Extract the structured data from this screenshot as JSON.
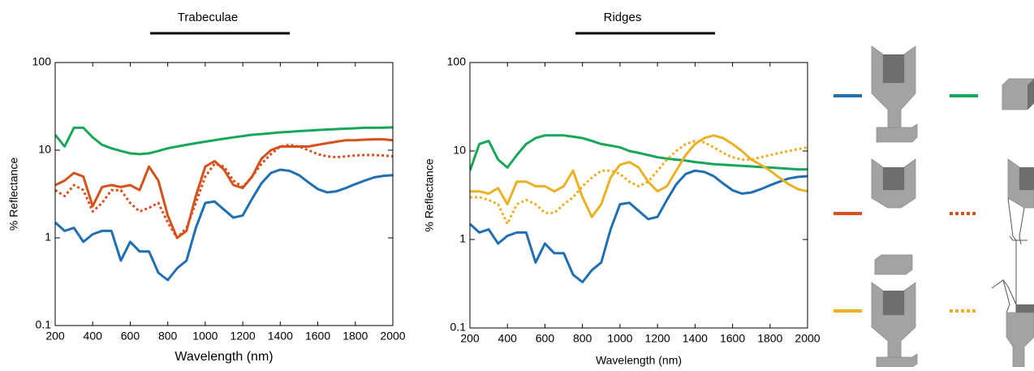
{
  "chart_data": [
    {
      "type": "line",
      "title": "Trabeculae",
      "xlabel": "Wavelength (nm)",
      "ylabel": "% Reflectance",
      "log_y": true,
      "x": [
        200,
        250,
        300,
        350,
        400,
        450,
        500,
        550,
        600,
        650,
        700,
        750,
        800,
        850,
        900,
        950,
        1000,
        1050,
        1100,
        1150,
        1200,
        1250,
        1300,
        1350,
        1400,
        1450,
        1500,
        1550,
        1600,
        1650,
        1700,
        1750,
        1800,
        1850,
        1900,
        1950,
        2000
      ],
      "xlim": [
        200,
        2000
      ],
      "xticks": [
        200,
        400,
        600,
        800,
        1000,
        1200,
        1400,
        1600,
        1800,
        2000
      ],
      "ylim": [
        0.1,
        100
      ],
      "yticks": [
        0.1,
        1,
        10,
        100
      ],
      "series": [
        {
          "color": "#17a75a",
          "dashed": false,
          "values": [
            15,
            11,
            18,
            18,
            14,
            11.5,
            10.5,
            9.8,
            9.2,
            9,
            9.2,
            9.8,
            10.5,
            11,
            11.5,
            12,
            12.5,
            13,
            13.5,
            14,
            14.5,
            15,
            15.3,
            15.6,
            16,
            16.2,
            16.5,
            16.7,
            17,
            17.2,
            17.4,
            17.6,
            17.8,
            18,
            18,
            18.1,
            18.2
          ]
        },
        {
          "color": "#1f6fb2",
          "dashed": false,
          "values": [
            1.5,
            1.2,
            1.3,
            0.9,
            1.1,
            1.2,
            1.2,
            0.55,
            0.9,
            0.7,
            0.7,
            0.4,
            0.33,
            0.45,
            0.55,
            1.3,
            2.5,
            2.6,
            2.1,
            1.7,
            1.8,
            2.8,
            4.2,
            5.5,
            6,
            5.8,
            5.2,
            4.3,
            3.6,
            3.3,
            3.4,
            3.7,
            4.1,
            4.5,
            4.9,
            5.1,
            5.2
          ]
        },
        {
          "color": "#d5521d",
          "dashed": false,
          "values": [
            4,
            4.5,
            5.5,
            5,
            2.3,
            3.8,
            4,
            3.8,
            4,
            3.5,
            6.5,
            4.5,
            1.8,
            1,
            1.2,
            3,
            6.5,
            7.5,
            6,
            4,
            3.7,
            5,
            8,
            10,
            11,
            11,
            11,
            11,
            11.5,
            12,
            12.5,
            13,
            13,
            13.2,
            13.3,
            13.3,
            13
          ]
        },
        {
          "color": "#d5521d",
          "dashed": true,
          "values": [
            3.5,
            3,
            4,
            3.5,
            2,
            2.5,
            3.5,
            3.5,
            2.5,
            2,
            2.2,
            2.5,
            1.5,
            1,
            1.3,
            2.5,
            5,
            7,
            6.5,
            4.5,
            3.8,
            5,
            7,
            9,
            11,
            11.5,
            11,
            10,
            9,
            8.5,
            8.3,
            8.5,
            8.7,
            8.8,
            8.8,
            8.7,
            8.5
          ]
        }
      ]
    },
    {
      "type": "line",
      "title": "Ridges",
      "xlabel": "Wavelength (nm)",
      "ylabel": "% Reflectance",
      "log_y": true,
      "x": [
        200,
        250,
        300,
        350,
        400,
        450,
        500,
        550,
        600,
        650,
        700,
        750,
        800,
        850,
        900,
        950,
        1000,
        1050,
        1100,
        1150,
        1200,
        1250,
        1300,
        1350,
        1400,
        1450,
        1500,
        1550,
        1600,
        1650,
        1700,
        1750,
        1800,
        1850,
        1900,
        1950,
        2000
      ],
      "xlim": [
        200,
        2000
      ],
      "xticks": [
        200,
        400,
        600,
        800,
        1000,
        1200,
        1400,
        1600,
        1800,
        2000
      ],
      "ylim": [
        0.1,
        100
      ],
      "yticks": [
        0.1,
        1,
        10,
        100
      ],
      "series": [
        {
          "color": "#17a75a",
          "dashed": false,
          "values": [
            6,
            12,
            13,
            8,
            6.5,
            9,
            12,
            14,
            15,
            15,
            15,
            14.5,
            14,
            13,
            12,
            11.5,
            11,
            10,
            9.5,
            9,
            8.5,
            8.2,
            8,
            7.8,
            7.5,
            7.3,
            7.1,
            7,
            6.9,
            6.8,
            6.7,
            6.6,
            6.5,
            6.4,
            6.3,
            6.2,
            6.2
          ]
        },
        {
          "color": "#1f6fb2",
          "dashed": false,
          "values": [
            1.5,
            1.2,
            1.3,
            0.9,
            1.1,
            1.2,
            1.2,
            0.55,
            0.9,
            0.7,
            0.7,
            0.4,
            0.33,
            0.45,
            0.55,
            1.3,
            2.5,
            2.6,
            2.1,
            1.7,
            1.8,
            2.8,
            4.2,
            5.5,
            6,
            5.8,
            5.2,
            4.3,
            3.6,
            3.3,
            3.4,
            3.7,
            4.1,
            4.5,
            4.9,
            5.1,
            5.2
          ]
        },
        {
          "color": "#ebb024",
          "dashed": false,
          "values": [
            3.5,
            3.5,
            3.3,
            3.8,
            2.5,
            4.5,
            4.5,
            4,
            4,
            3.5,
            4,
            6,
            3,
            1.8,
            2.5,
            5,
            7,
            7.5,
            6.5,
            4.5,
            3.5,
            4,
            6,
            9,
            12,
            14,
            15,
            14,
            12,
            10,
            8,
            7,
            6,
            5,
            4.2,
            3.7,
            3.5
          ]
        },
        {
          "color": "#ebb024",
          "dashed": true,
          "values": [
            3,
            3,
            2.8,
            2.5,
            1.5,
            2.5,
            2.8,
            2.5,
            2,
            2,
            2.5,
            3,
            4,
            5,
            6,
            6,
            5.5,
            4.5,
            4,
            4.5,
            6,
            8,
            10,
            12,
            13,
            12.5,
            11,
            9.5,
            8.5,
            8,
            8,
            8.5,
            9,
            9.5,
            10,
            10.5,
            11
          ]
        }
      ]
    }
  ]
}
